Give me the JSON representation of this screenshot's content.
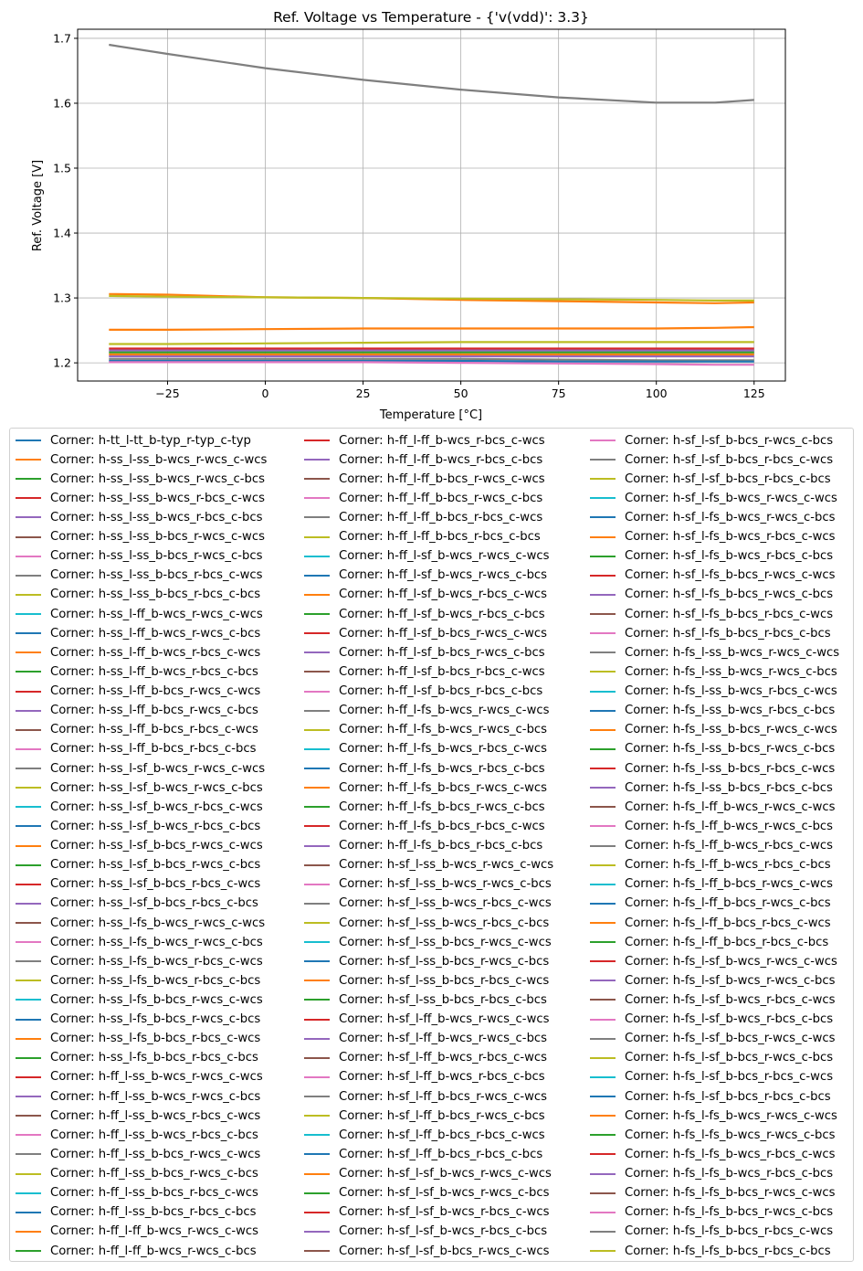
{
  "chart_data": {
    "type": "line",
    "title": "Ref. Voltage vs Temperature - {'v(vdd)': 3.3}",
    "xlabel": "Temperature [°C]",
    "ylabel": "Ref. Voltage [V]",
    "xlim": [
      -48,
      133
    ],
    "ylim": [
      1.172,
      1.714
    ],
    "xticks": [
      -25,
      0,
      25,
      50,
      75,
      100,
      125
    ],
    "yticks": [
      1.2,
      1.3,
      1.4,
      1.5,
      1.6,
      1.7
    ],
    "xtick_labels": [
      "−25",
      "0",
      "25",
      "50",
      "75",
      "100",
      "125"
    ],
    "ytick_labels": [
      "1.2",
      "1.3",
      "1.4",
      "1.5",
      "1.6",
      "1.7"
    ],
    "grid": true,
    "legend_placement": "below",
    "x": [
      -40,
      -25,
      0,
      25,
      50,
      75,
      100,
      115,
      125
    ],
    "series": [
      {
        "color": "#7f7f7f",
        "values": [
          1.69,
          1.676,
          1.654,
          1.636,
          1.621,
          1.609,
          1.601,
          1.601,
          1.605
        ]
      },
      {
        "color": "#ff7f0e",
        "values": [
          1.306,
          1.305,
          1.301,
          1.3,
          1.297,
          1.295,
          1.293,
          1.292,
          1.293
        ]
      },
      {
        "color": "#bcbd22",
        "values": [
          1.303,
          1.302,
          1.301,
          1.3,
          1.299,
          1.298,
          1.297,
          1.296,
          1.296
        ]
      },
      {
        "color": "#ff7f0e",
        "values": [
          1.251,
          1.251,
          1.252,
          1.253,
          1.253,
          1.253,
          1.253,
          1.254,
          1.255
        ]
      },
      {
        "color": "#bcbd22",
        "values": [
          1.229,
          1.229,
          1.23,
          1.231,
          1.232,
          1.232,
          1.232,
          1.232,
          1.232
        ]
      },
      {
        "color": "#d62728",
        "values": [
          1.222,
          1.222,
          1.222,
          1.222,
          1.222,
          1.222,
          1.222,
          1.222,
          1.222
        ]
      },
      {
        "color": "#9467bd",
        "values": [
          1.219,
          1.219,
          1.219,
          1.219,
          1.219,
          1.219,
          1.219,
          1.219,
          1.219
        ]
      },
      {
        "color": "#2ca02c",
        "values": [
          1.216,
          1.216,
          1.216,
          1.216,
          1.216,
          1.216,
          1.216,
          1.216,
          1.216
        ]
      },
      {
        "color": "#ff7f0e",
        "values": [
          1.213,
          1.213,
          1.213,
          1.213,
          1.213,
          1.213,
          1.213,
          1.213,
          1.213
        ]
      },
      {
        "color": "#9467bd",
        "values": [
          1.21,
          1.21,
          1.21,
          1.21,
          1.21,
          1.21,
          1.21,
          1.21,
          1.21
        ]
      },
      {
        "color": "#7f7f7f",
        "values": [
          1.206,
          1.206,
          1.206,
          1.206,
          1.206,
          1.205,
          1.204,
          1.204,
          1.204
        ]
      },
      {
        "color": "#1f77b4",
        "values": [
          1.203,
          1.203,
          1.203,
          1.203,
          1.203,
          1.202,
          1.202,
          1.202,
          1.202
        ]
      },
      {
        "color": "#e377c2",
        "values": [
          1.201,
          1.201,
          1.201,
          1.201,
          1.2,
          1.199,
          1.198,
          1.197,
          1.197
        ]
      }
    ]
  },
  "legend": {
    "colors": [
      "#1f77b4",
      "#ff7f0e",
      "#2ca02c",
      "#d62728",
      "#9467bd",
      "#8c564b",
      "#e377c2",
      "#7f7f7f",
      "#bcbd22",
      "#17becf"
    ],
    "entries": [
      "Corner: h-tt_l-tt_b-typ_r-typ_c-typ",
      "Corner: h-ss_l-ss_b-wcs_r-wcs_c-wcs",
      "Corner: h-ss_l-ss_b-wcs_r-wcs_c-bcs",
      "Corner: h-ss_l-ss_b-wcs_r-bcs_c-wcs",
      "Corner: h-ss_l-ss_b-wcs_r-bcs_c-bcs",
      "Corner: h-ss_l-ss_b-bcs_r-wcs_c-wcs",
      "Corner: h-ss_l-ss_b-bcs_r-wcs_c-bcs",
      "Corner: h-ss_l-ss_b-bcs_r-bcs_c-wcs",
      "Corner: h-ss_l-ss_b-bcs_r-bcs_c-bcs",
      "Corner: h-ss_l-ff_b-wcs_r-wcs_c-wcs",
      "Corner: h-ss_l-ff_b-wcs_r-wcs_c-bcs",
      "Corner: h-ss_l-ff_b-wcs_r-bcs_c-wcs",
      "Corner: h-ss_l-ff_b-wcs_r-bcs_c-bcs",
      "Corner: h-ss_l-ff_b-bcs_r-wcs_c-wcs",
      "Corner: h-ss_l-ff_b-bcs_r-wcs_c-bcs",
      "Corner: h-ss_l-ff_b-bcs_r-bcs_c-wcs",
      "Corner: h-ss_l-ff_b-bcs_r-bcs_c-bcs",
      "Corner: h-ss_l-sf_b-wcs_r-wcs_c-wcs",
      "Corner: h-ss_l-sf_b-wcs_r-wcs_c-bcs",
      "Corner: h-ss_l-sf_b-wcs_r-bcs_c-wcs",
      "Corner: h-ss_l-sf_b-wcs_r-bcs_c-bcs",
      "Corner: h-ss_l-sf_b-bcs_r-wcs_c-wcs",
      "Corner: h-ss_l-sf_b-bcs_r-wcs_c-bcs",
      "Corner: h-ss_l-sf_b-bcs_r-bcs_c-wcs",
      "Corner: h-ss_l-sf_b-bcs_r-bcs_c-bcs",
      "Corner: h-ss_l-fs_b-wcs_r-wcs_c-wcs",
      "Corner: h-ss_l-fs_b-wcs_r-wcs_c-bcs",
      "Corner: h-ss_l-fs_b-wcs_r-bcs_c-wcs",
      "Corner: h-ss_l-fs_b-wcs_r-bcs_c-bcs",
      "Corner: h-ss_l-fs_b-bcs_r-wcs_c-wcs",
      "Corner: h-ss_l-fs_b-bcs_r-wcs_c-bcs",
      "Corner: h-ss_l-fs_b-bcs_r-bcs_c-wcs",
      "Corner: h-ss_l-fs_b-bcs_r-bcs_c-bcs",
      "Corner: h-ff_l-ss_b-wcs_r-wcs_c-wcs",
      "Corner: h-ff_l-ss_b-wcs_r-wcs_c-bcs",
      "Corner: h-ff_l-ss_b-wcs_r-bcs_c-wcs",
      "Corner: h-ff_l-ss_b-wcs_r-bcs_c-bcs",
      "Corner: h-ff_l-ss_b-bcs_r-wcs_c-wcs",
      "Corner: h-ff_l-ss_b-bcs_r-wcs_c-bcs",
      "Corner: h-ff_l-ss_b-bcs_r-bcs_c-wcs",
      "Corner: h-ff_l-ss_b-bcs_r-bcs_c-bcs",
      "Corner: h-ff_l-ff_b-wcs_r-wcs_c-wcs",
      "Corner: h-ff_l-ff_b-wcs_r-wcs_c-bcs",
      "Corner: h-ff_l-ff_b-wcs_r-bcs_c-wcs",
      "Corner: h-ff_l-ff_b-wcs_r-bcs_c-bcs",
      "Corner: h-ff_l-ff_b-bcs_r-wcs_c-wcs",
      "Corner: h-ff_l-ff_b-bcs_r-wcs_c-bcs",
      "Corner: h-ff_l-ff_b-bcs_r-bcs_c-wcs",
      "Corner: h-ff_l-ff_b-bcs_r-bcs_c-bcs",
      "Corner: h-ff_l-sf_b-wcs_r-wcs_c-wcs",
      "Corner: h-ff_l-sf_b-wcs_r-wcs_c-bcs",
      "Corner: h-ff_l-sf_b-wcs_r-bcs_c-wcs",
      "Corner: h-ff_l-sf_b-wcs_r-bcs_c-bcs",
      "Corner: h-ff_l-sf_b-bcs_r-wcs_c-wcs",
      "Corner: h-ff_l-sf_b-bcs_r-wcs_c-bcs",
      "Corner: h-ff_l-sf_b-bcs_r-bcs_c-wcs",
      "Corner: h-ff_l-sf_b-bcs_r-bcs_c-bcs",
      "Corner: h-ff_l-fs_b-wcs_r-wcs_c-wcs",
      "Corner: h-ff_l-fs_b-wcs_r-wcs_c-bcs",
      "Corner: h-ff_l-fs_b-wcs_r-bcs_c-wcs",
      "Corner: h-ff_l-fs_b-wcs_r-bcs_c-bcs",
      "Corner: h-ff_l-fs_b-bcs_r-wcs_c-wcs",
      "Corner: h-ff_l-fs_b-bcs_r-wcs_c-bcs",
      "Corner: h-ff_l-fs_b-bcs_r-bcs_c-wcs",
      "Corner: h-ff_l-fs_b-bcs_r-bcs_c-bcs",
      "Corner: h-sf_l-ss_b-wcs_r-wcs_c-wcs",
      "Corner: h-sf_l-ss_b-wcs_r-wcs_c-bcs",
      "Corner: h-sf_l-ss_b-wcs_r-bcs_c-wcs",
      "Corner: h-sf_l-ss_b-wcs_r-bcs_c-bcs",
      "Corner: h-sf_l-ss_b-bcs_r-wcs_c-wcs",
      "Corner: h-sf_l-ss_b-bcs_r-wcs_c-bcs",
      "Corner: h-sf_l-ss_b-bcs_r-bcs_c-wcs",
      "Corner: h-sf_l-ss_b-bcs_r-bcs_c-bcs",
      "Corner: h-sf_l-ff_b-wcs_r-wcs_c-wcs",
      "Corner: h-sf_l-ff_b-wcs_r-wcs_c-bcs",
      "Corner: h-sf_l-ff_b-wcs_r-bcs_c-wcs",
      "Corner: h-sf_l-ff_b-wcs_r-bcs_c-bcs",
      "Corner: h-sf_l-ff_b-bcs_r-wcs_c-wcs",
      "Corner: h-sf_l-ff_b-bcs_r-wcs_c-bcs",
      "Corner: h-sf_l-ff_b-bcs_r-bcs_c-wcs",
      "Corner: h-sf_l-ff_b-bcs_r-bcs_c-bcs",
      "Corner: h-sf_l-sf_b-wcs_r-wcs_c-wcs",
      "Corner: h-sf_l-sf_b-wcs_r-wcs_c-bcs",
      "Corner: h-sf_l-sf_b-wcs_r-bcs_c-wcs",
      "Corner: h-sf_l-sf_b-wcs_r-bcs_c-bcs",
      "Corner: h-sf_l-sf_b-bcs_r-wcs_c-wcs",
      "Corner: h-sf_l-sf_b-bcs_r-wcs_c-bcs",
      "Corner: h-sf_l-sf_b-bcs_r-bcs_c-wcs",
      "Corner: h-sf_l-sf_b-bcs_r-bcs_c-bcs",
      "Corner: h-sf_l-fs_b-wcs_r-wcs_c-wcs",
      "Corner: h-sf_l-fs_b-wcs_r-wcs_c-bcs",
      "Corner: h-sf_l-fs_b-wcs_r-bcs_c-wcs",
      "Corner: h-sf_l-fs_b-wcs_r-bcs_c-bcs",
      "Corner: h-sf_l-fs_b-bcs_r-wcs_c-wcs",
      "Corner: h-sf_l-fs_b-bcs_r-wcs_c-bcs",
      "Corner: h-sf_l-fs_b-bcs_r-bcs_c-wcs",
      "Corner: h-sf_l-fs_b-bcs_r-bcs_c-bcs",
      "Corner: h-fs_l-ss_b-wcs_r-wcs_c-wcs",
      "Corner: h-fs_l-ss_b-wcs_r-wcs_c-bcs",
      "Corner: h-fs_l-ss_b-wcs_r-bcs_c-wcs",
      "Corner: h-fs_l-ss_b-wcs_r-bcs_c-bcs",
      "Corner: h-fs_l-ss_b-bcs_r-wcs_c-wcs",
      "Corner: h-fs_l-ss_b-bcs_r-wcs_c-bcs",
      "Corner: h-fs_l-ss_b-bcs_r-bcs_c-wcs",
      "Corner: h-fs_l-ss_b-bcs_r-bcs_c-bcs",
      "Corner: h-fs_l-ff_b-wcs_r-wcs_c-wcs",
      "Corner: h-fs_l-ff_b-wcs_r-wcs_c-bcs",
      "Corner: h-fs_l-ff_b-wcs_r-bcs_c-wcs",
      "Corner: h-fs_l-ff_b-wcs_r-bcs_c-bcs",
      "Corner: h-fs_l-ff_b-bcs_r-wcs_c-wcs",
      "Corner: h-fs_l-ff_b-bcs_r-wcs_c-bcs",
      "Corner: h-fs_l-ff_b-bcs_r-bcs_c-wcs",
      "Corner: h-fs_l-ff_b-bcs_r-bcs_c-bcs",
      "Corner: h-fs_l-sf_b-wcs_r-wcs_c-wcs",
      "Corner: h-fs_l-sf_b-wcs_r-wcs_c-bcs",
      "Corner: h-fs_l-sf_b-wcs_r-bcs_c-wcs",
      "Corner: h-fs_l-sf_b-wcs_r-bcs_c-bcs",
      "Corner: h-fs_l-sf_b-bcs_r-wcs_c-wcs",
      "Corner: h-fs_l-sf_b-bcs_r-wcs_c-bcs",
      "Corner: h-fs_l-sf_b-bcs_r-bcs_c-wcs",
      "Corner: h-fs_l-sf_b-bcs_r-bcs_c-bcs",
      "Corner: h-fs_l-fs_b-wcs_r-wcs_c-wcs",
      "Corner: h-fs_l-fs_b-wcs_r-wcs_c-bcs",
      "Corner: h-fs_l-fs_b-wcs_r-bcs_c-wcs",
      "Corner: h-fs_l-fs_b-wcs_r-bcs_c-bcs",
      "Corner: h-fs_l-fs_b-bcs_r-wcs_c-wcs",
      "Corner: h-fs_l-fs_b-bcs_r-wcs_c-bcs",
      "Corner: h-fs_l-fs_b-bcs_r-bcs_c-wcs",
      "Corner: h-fs_l-fs_b-bcs_r-bcs_c-bcs"
    ]
  }
}
